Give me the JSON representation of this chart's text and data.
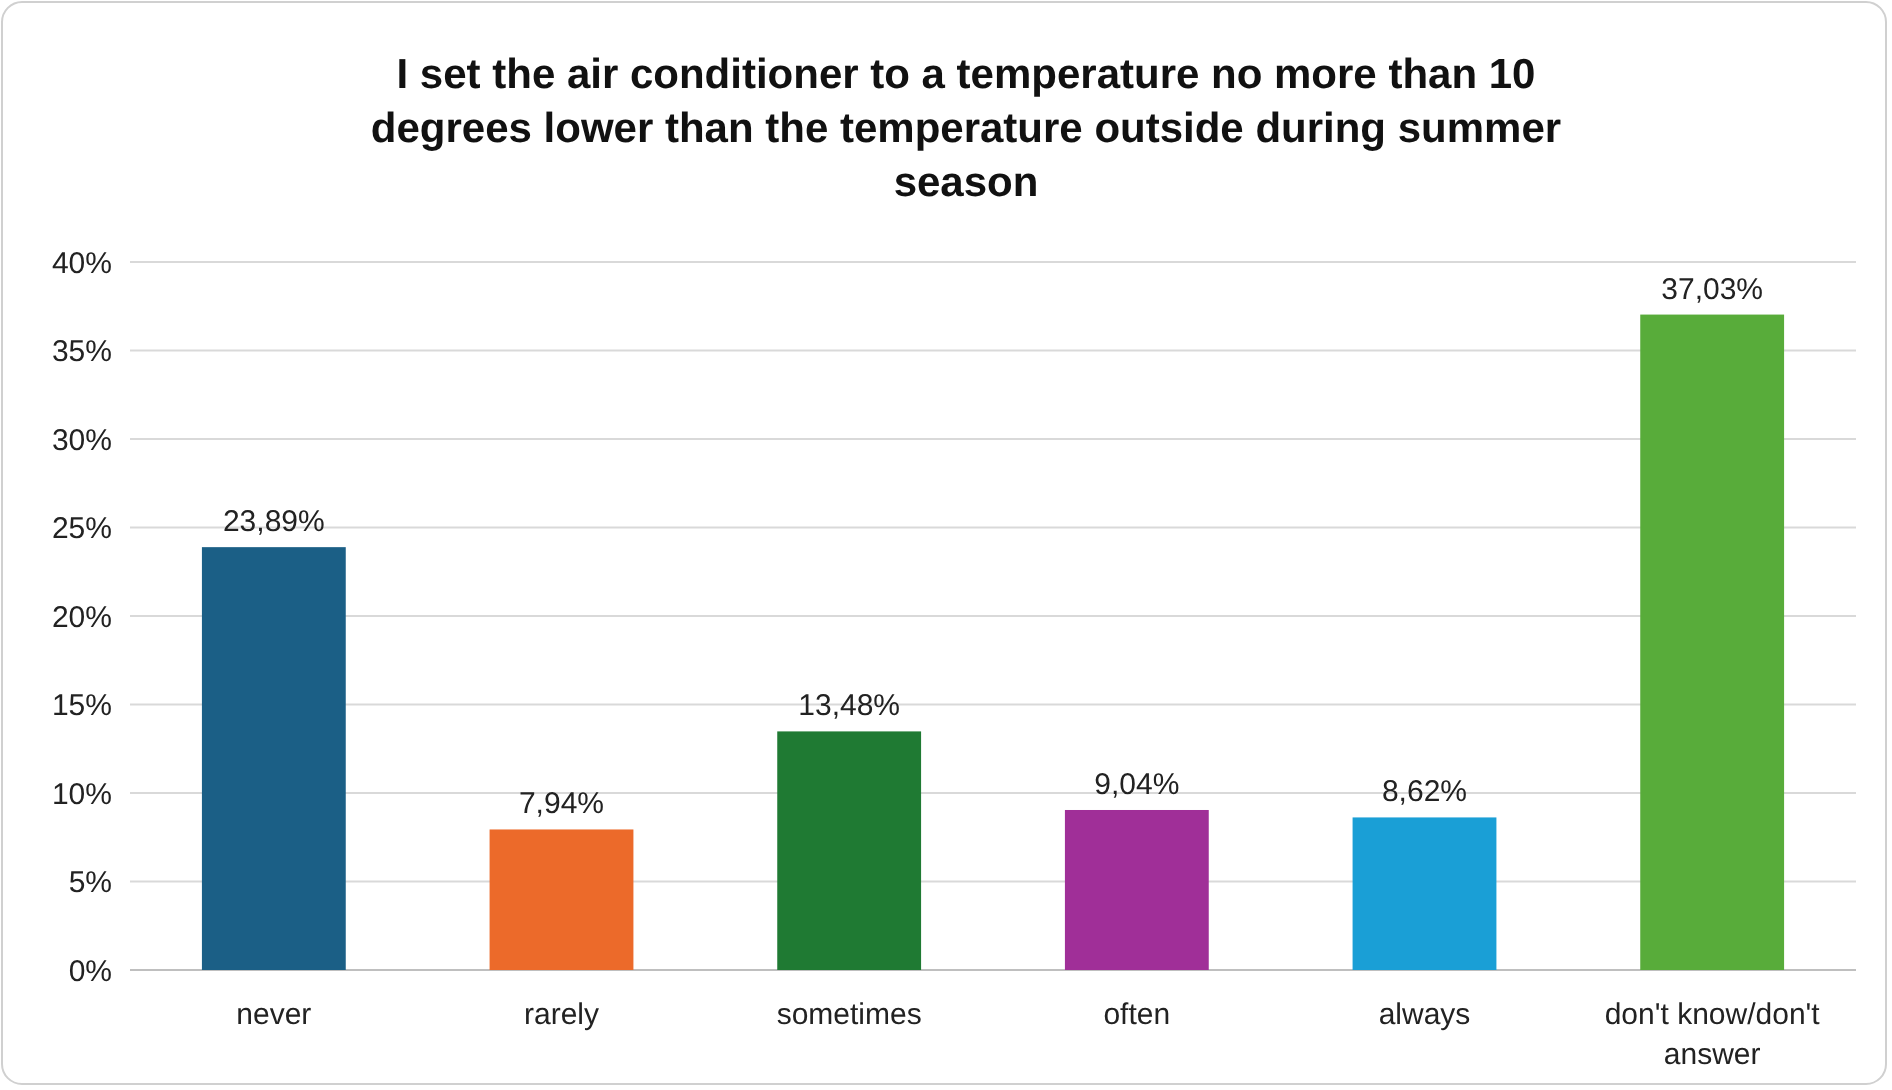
{
  "chart_data": {
    "type": "bar",
    "title": "I set the air conditioner to a temperature no more than 10 degrees lower than the temperature outside during summer season",
    "categories": [
      "never",
      "rarely",
      "sometimes",
      "often",
      "always",
      "don't know/don't answer"
    ],
    "values": [
      23.89,
      7.94,
      13.48,
      9.04,
      8.62,
      37.03
    ],
    "colors": [
      "#1b5f86",
      "#ec6a2a",
      "#1f7a33",
      "#a02f98",
      "#1a9fd6",
      "#58ac3a"
    ],
    "value_labels": [
      "23,89%",
      "7,94%",
      "13,48%",
      "9,04%",
      "8,62%",
      "37,03%"
    ],
    "ylim": [
      0,
      40
    ],
    "yticks": [
      {
        "value": 0,
        "label": "0%"
      },
      {
        "value": 5,
        "label": "5%"
      },
      {
        "value": 10,
        "label": "10%"
      },
      {
        "value": 15,
        "label": "15%"
      },
      {
        "value": 20,
        "label": "20%"
      },
      {
        "value": 25,
        "label": "25%"
      },
      {
        "value": 30,
        "label": "30%"
      },
      {
        "value": 35,
        "label": "35%"
      },
      {
        "value": 40,
        "label": "40%"
      }
    ],
    "grid": "y"
  }
}
